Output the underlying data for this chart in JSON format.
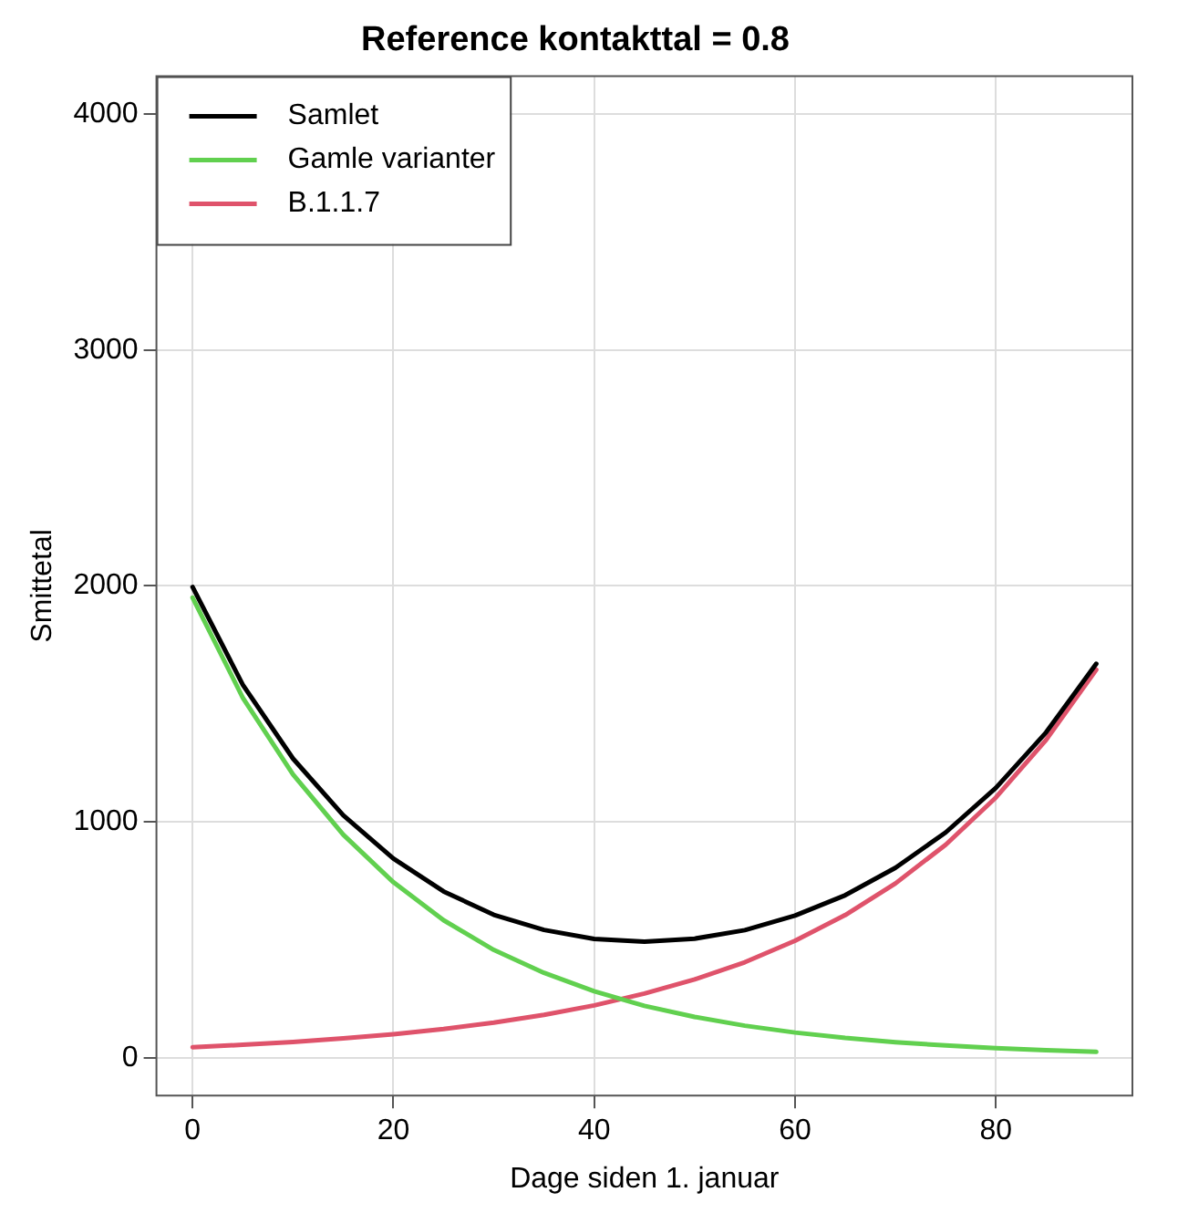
{
  "chart_data": {
    "type": "line",
    "title": "Reference kontakttal = 0.8",
    "xlabel": "Dage siden 1. januar",
    "ylabel": "Smittetal",
    "x": [
      0,
      5,
      10,
      15,
      20,
      25,
      30,
      35,
      40,
      45,
      50,
      55,
      60,
      65,
      70,
      75,
      80,
      85,
      90
    ],
    "series": [
      {
        "name": "Samlet",
        "color": "#000000",
        "values": [
          1995,
          1581,
          1268,
          1028,
          844,
          705,
          606,
          542,
          504,
          492,
          505,
          541,
          603,
          689,
          805,
          955,
          1144,
          1379,
          1670
        ]
      },
      {
        "name": "Gamle varianter",
        "color": "#61d04f",
        "values": [
          1950,
          1526,
          1201,
          946,
          744,
          583,
          457,
          360,
          282,
          220,
          173,
          136,
          107,
          84,
          66,
          52,
          41,
          32,
          25
        ]
      },
      {
        "name": "B.1.1.7",
        "color": "#df536b",
        "values": [
          45,
          55,
          67,
          82,
          100,
          122,
          149,
          182,
          222,
          272,
          332,
          405,
          496,
          605,
          739,
          903,
          1103,
          1347,
          1645
        ]
      }
    ],
    "xlim": [
      -3.6,
      93.6
    ],
    "xticks": [
      0,
      20,
      40,
      60,
      80
    ],
    "ylim": [
      -160,
      4160
    ],
    "yticks": [
      0,
      1000,
      2000,
      3000,
      4000
    ],
    "grid": true,
    "legend": "top left",
    "marker": "none",
    "line_style": "solid"
  }
}
